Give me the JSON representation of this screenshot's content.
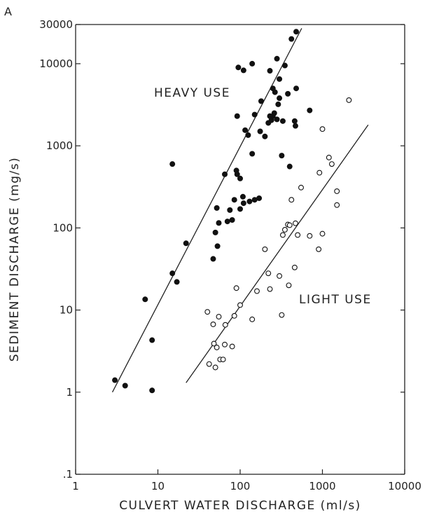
{
  "chart_data": {
    "type": "scatter",
    "panel_label": "A",
    "title": "",
    "xlabel": "CULVERT WATER DISCHARGE (ml/s)",
    "ylabel": "SEDIMENT DISCHARGE (mg/s)",
    "x_scale": "log",
    "y_scale": "log",
    "xlim": [
      1,
      10000
    ],
    "ylim": [
      0.1,
      30000
    ],
    "x_ticks": [
      1,
      10,
      100,
      1000,
      10000
    ],
    "x_tick_labels": [
      "1",
      "10",
      "100",
      "1000",
      "10000"
    ],
    "y_ticks": [
      0.1,
      1,
      10,
      100,
      1000,
      10000,
      30000
    ],
    "y_tick_labels": [
      ".1",
      "1",
      "10",
      "100",
      "1000",
      "10000",
      "30000"
    ],
    "grid": false,
    "annotations": [
      "HEAVY USE",
      "LIGHT USE"
    ],
    "series": [
      {
        "marker": "filled-circle",
        "color": "#111111",
        "points": [
          [
            3,
            1.4
          ],
          [
            4,
            1.2
          ],
          [
            8.5,
            1.05
          ],
          [
            8.5,
            4.3
          ],
          [
            7,
            13.5
          ],
          [
            15,
            28
          ],
          [
            17,
            22
          ],
          [
            22,
            65
          ],
          [
            15,
            600
          ],
          [
            47,
            42
          ],
          [
            50,
            88
          ],
          [
            52,
            175
          ],
          [
            53,
            60
          ],
          [
            55,
            115
          ],
          [
            65,
            450
          ],
          [
            75,
            165
          ],
          [
            80,
            125
          ],
          [
            85,
            220
          ],
          [
            90,
            500
          ],
          [
            92,
            450
          ],
          [
            100,
            170
          ],
          [
            100,
            400
          ],
          [
            108,
            240
          ],
          [
            110,
            200
          ],
          [
            130,
            210
          ],
          [
            150,
            220
          ],
          [
            170,
            230
          ],
          [
            70,
            120
          ],
          [
            92,
            2300
          ],
          [
            115,
            1550
          ],
          [
            125,
            1350
          ],
          [
            150,
            2400
          ],
          [
            140,
            800
          ],
          [
            175,
            1500
          ],
          [
            180,
            3500
          ],
          [
            200,
            1300
          ],
          [
            220,
            1900
          ],
          [
            230,
            2300
          ],
          [
            240,
            2050
          ],
          [
            250,
            2300
          ],
          [
            260,
            2500
          ],
          [
            280,
            2100
          ],
          [
            290,
            3200
          ],
          [
            300,
            3800
          ],
          [
            320,
            760
          ],
          [
            330,
            2000
          ],
          [
            400,
            560
          ],
          [
            460,
            2000
          ],
          [
            470,
            1750
          ],
          [
            700,
            2700
          ],
          [
            480,
            5000
          ],
          [
            95,
            9000
          ],
          [
            110,
            8300
          ],
          [
            140,
            10000
          ],
          [
            230,
            8200
          ],
          [
            250,
            5000
          ],
          [
            280,
            11500
          ],
          [
            300,
            6500
          ],
          [
            350,
            9500
          ],
          [
            380,
            4300
          ],
          [
            420,
            20000
          ],
          [
            480,
            24500
          ],
          [
            265,
            4500
          ]
        ]
      },
      {
        "marker": "open-circle",
        "color": "#111111",
        "points": [
          [
            40,
            9.5
          ],
          [
            42,
            2.2
          ],
          [
            47,
            6.7
          ],
          [
            48,
            3.9
          ],
          [
            50,
            2.0
          ],
          [
            52,
            3.5
          ],
          [
            55,
            8.3
          ],
          [
            57,
            2.5
          ],
          [
            62,
            2.5
          ],
          [
            65,
            3.8
          ],
          [
            66,
            6.6
          ],
          [
            80,
            3.6
          ],
          [
            85,
            8.5
          ],
          [
            90,
            18.5
          ],
          [
            100,
            11.5
          ],
          [
            140,
            7.7
          ],
          [
            160,
            17
          ],
          [
            200,
            55
          ],
          [
            220,
            28
          ],
          [
            230,
            18
          ],
          [
            300,
            26
          ],
          [
            320,
            8.7
          ],
          [
            330,
            82
          ],
          [
            350,
            95
          ],
          [
            380,
            110
          ],
          [
            390,
            20
          ],
          [
            400,
            108
          ],
          [
            420,
            220
          ],
          [
            460,
            33
          ],
          [
            470,
            114
          ],
          [
            500,
            82
          ],
          [
            550,
            310
          ],
          [
            700,
            80
          ],
          [
            900,
            55
          ],
          [
            920,
            470
          ],
          [
            1000,
            85
          ],
          [
            1000,
            1600
          ],
          [
            1200,
            720
          ],
          [
            1300,
            600
          ],
          [
            1500,
            190
          ],
          [
            1500,
            280
          ],
          [
            2100,
            3600
          ]
        ]
      }
    ],
    "fit_lines": [
      {
        "series": 0,
        "from": [
          2.8,
          1.0
        ],
        "to": [
          560,
          27000
        ]
      },
      {
        "series": 1,
        "from": [
          22,
          1.3
        ],
        "to": [
          3600,
          1800
        ]
      }
    ]
  }
}
